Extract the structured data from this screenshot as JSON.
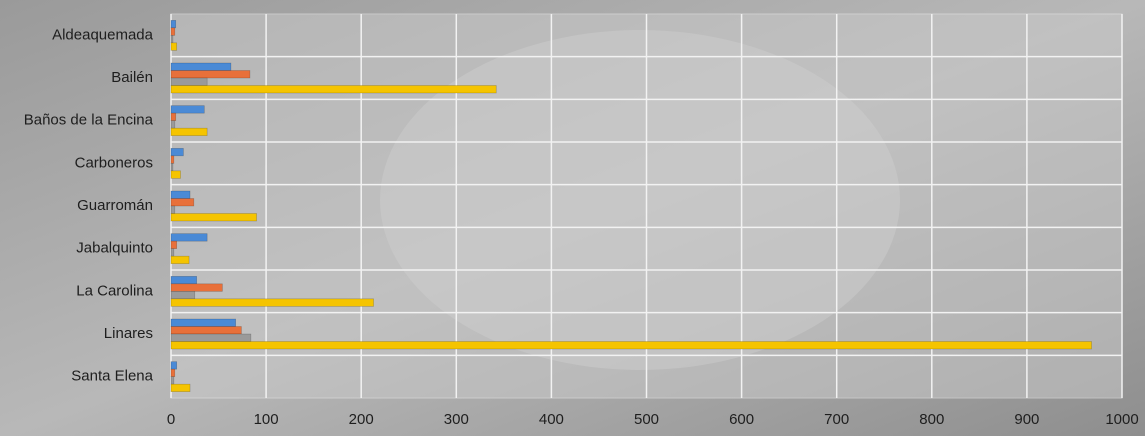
{
  "chart_data": {
    "type": "bar",
    "orientation": "horizontal",
    "categories": [
      "Aldeaquemada",
      "Bailén",
      "Baños de la Encina",
      "Carboneros",
      "Guarromán",
      "Jabalquinto",
      "La Carolina",
      "Linares",
      "Santa Elena"
    ],
    "series": [
      {
        "color": "#4a8ad6",
        "values": [
          5,
          63,
          35,
          13,
          20,
          38,
          27,
          68,
          6
        ]
      },
      {
        "color": "#e8703a",
        "values": [
          4,
          83,
          5,
          3,
          24,
          6,
          54,
          74,
          4
        ]
      },
      {
        "color": "#9a9a9a",
        "values": [
          2,
          38,
          4,
          2,
          4,
          3,
          25,
          84,
          3
        ]
      },
      {
        "color": "#f5c400",
        "values": [
          6,
          342,
          38,
          10,
          90,
          19,
          213,
          968,
          20
        ]
      }
    ],
    "xlim": [
      0,
      1000
    ],
    "xticks": [
      0,
      100,
      200,
      300,
      400,
      500,
      600,
      700,
      800,
      900,
      1000
    ],
    "grid": true
  }
}
